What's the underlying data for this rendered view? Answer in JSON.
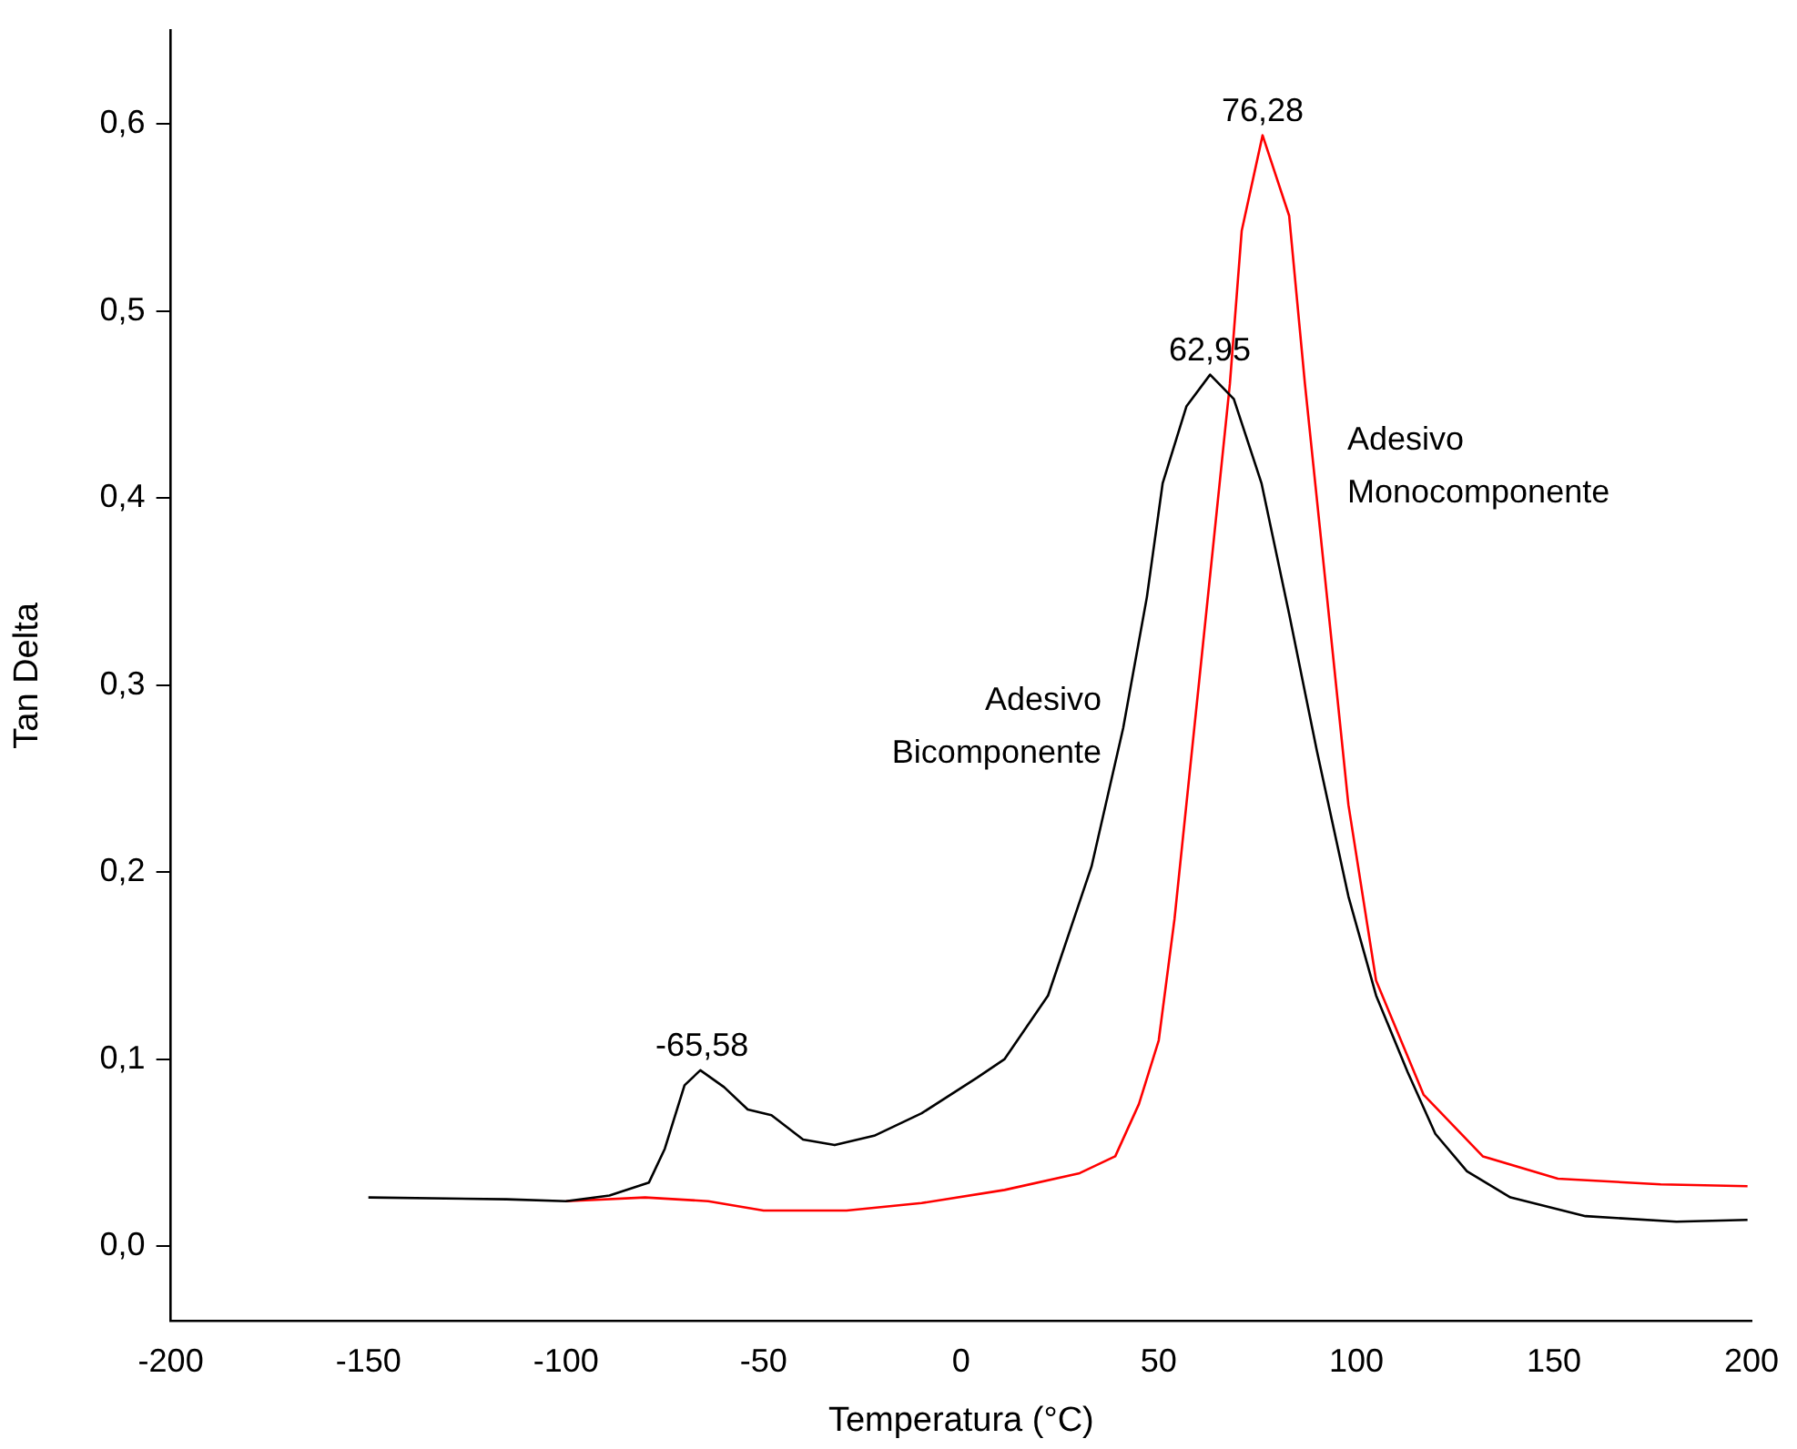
{
  "chart_data": {
    "type": "line",
    "xlabel": "Temperatura (°C)",
    "ylabel": "Tan Delta",
    "xlim": [
      -200,
      200
    ],
    "xticks": [
      -200,
      -150,
      -100,
      -50,
      0,
      50,
      100,
      150,
      200
    ],
    "ylim": [
      -0.04,
      0.65
    ],
    "yticks": [
      {
        "value": 0,
        "label": "0,0"
      },
      {
        "value": 0.1,
        "label": "0,1"
      },
      {
        "value": 0.2,
        "label": "0,2"
      },
      {
        "value": 0.3,
        "label": "0,3"
      },
      {
        "value": 0.4,
        "label": "0,4"
      },
      {
        "value": 0.5,
        "label": "0,5"
      },
      {
        "value": 0.6,
        "label": "0,6"
      }
    ],
    "grid": false,
    "legend": false,
    "marker": "none",
    "line_style": "solid",
    "series": [
      {
        "name": "Adesivo Bicomponente",
        "color": "#000000",
        "x": [
          -150,
          -115,
          -100,
          -89,
          -79,
          -75,
          -70,
          -66,
          -60,
          -54,
          -48,
          -40,
          -32,
          -22,
          -10,
          4,
          11,
          22,
          33,
          41,
          47,
          51,
          57,
          63,
          69,
          76,
          83,
          90,
          98,
          105,
          113,
          120,
          128,
          139,
          158,
          181,
          199
        ],
        "values": [
          0.026,
          0.025,
          0.024,
          0.027,
          0.034,
          0.052,
          0.086,
          0.094,
          0.085,
          0.073,
          0.07,
          0.057,
          0.054,
          0.059,
          0.071,
          0.09,
          0.1,
          0.134,
          0.203,
          0.277,
          0.347,
          0.408,
          0.449,
          0.466,
          0.453,
          0.408,
          0.338,
          0.265,
          0.187,
          0.134,
          0.093,
          0.06,
          0.04,
          0.026,
          0.016,
          0.013,
          0.014
        ]
      },
      {
        "name": "Adesivo Monocomponente",
        "color": "#ff0000",
        "x": [
          -100,
          -80,
          -64,
          -50,
          -29,
          -10,
          11,
          30,
          39,
          45,
          50,
          54,
          59,
          64,
          68,
          71,
          76.28,
          83,
          87,
          92,
          98,
          105,
          117,
          132,
          151,
          177,
          199
        ],
        "values": [
          0.024,
          0.026,
          0.024,
          0.019,
          0.019,
          0.023,
          0.03,
          0.039,
          0.048,
          0.076,
          0.11,
          0.175,
          0.277,
          0.379,
          0.461,
          0.543,
          0.594,
          0.551,
          0.461,
          0.359,
          0.236,
          0.142,
          0.081,
          0.048,
          0.036,
          0.033,
          0.032
        ]
      }
    ],
    "annotations": [
      {
        "text": "-65,58",
        "x": -65.58,
        "y": 0.094
      },
      {
        "text": "62,95",
        "x": 62.95,
        "y": 0.466
      },
      {
        "text": "76,28",
        "x": 76.28,
        "y": 0.594
      }
    ]
  }
}
